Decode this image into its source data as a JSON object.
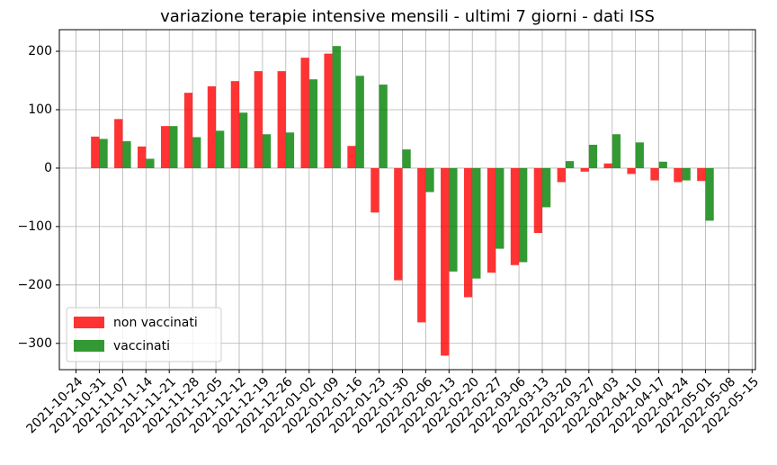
{
  "chart_data": {
    "type": "bar",
    "title": "variazione terapie intensive mensili - ultimi 7 giorni - dati ISS",
    "x": [
      "2021-10-31",
      "2021-11-07",
      "2021-11-14",
      "2021-11-21",
      "2021-11-28",
      "2021-12-05",
      "2021-12-12",
      "2021-12-19",
      "2021-12-26",
      "2022-01-02",
      "2022-01-09",
      "2022-01-16",
      "2022-01-23",
      "2022-01-30",
      "2022-02-06",
      "2022-02-13",
      "2022-02-20",
      "2022-02-27",
      "2022-03-06",
      "2022-03-13",
      "2022-03-20",
      "2022-03-27",
      "2022-04-03",
      "2022-04-10",
      "2022-04-17",
      "2022-04-24",
      "2022-05-01"
    ],
    "series": [
      {
        "name": "non vaccinati",
        "color": "#ff0000",
        "values": [
          54,
          84,
          37,
          72,
          129,
          140,
          149,
          166,
          166,
          189,
          196,
          38,
          -76,
          -192,
          -264,
          -321,
          -221,
          -179,
          -166,
          -111,
          -24,
          -6,
          8,
          -10,
          -21,
          -24,
          -22
        ]
      },
      {
        "name": "vaccinati",
        "color": "#008000",
        "values": [
          50,
          46,
          16,
          72,
          53,
          64,
          95,
          58,
          61,
          152,
          209,
          158,
          143,
          32,
          -41,
          -177,
          -189,
          -138,
          -161,
          -67,
          12,
          40,
          58,
          44,
          11,
          -21,
          -90
        ]
      }
    ],
    "xlim": [
      "2021-10-19",
      "2022-05-16"
    ],
    "xticks": [
      "2021-10-24",
      "2021-10-31",
      "2021-11-07",
      "2021-11-14",
      "2021-11-21",
      "2021-11-28",
      "2021-12-05",
      "2021-12-12",
      "2021-12-19",
      "2021-12-26",
      "2022-01-02",
      "2022-01-09",
      "2022-01-16",
      "2022-01-23",
      "2022-01-30",
      "2022-02-06",
      "2022-02-13",
      "2022-02-20",
      "2022-02-27",
      "2022-03-06",
      "2022-03-13",
      "2022-03-20",
      "2022-03-27",
      "2022-04-03",
      "2022-04-10",
      "2022-04-17",
      "2022-04-24",
      "2022-05-01",
      "2022-05-08",
      "2022-05-15"
    ],
    "ylim": [
      -345,
      237
    ],
    "yticks": [
      {
        "value": -300,
        "label": "−300"
      },
      {
        "value": -200,
        "label": "−200"
      },
      {
        "value": -100,
        "label": "−100"
      },
      0,
      100,
      200
    ],
    "grid": true,
    "legend": "lower left"
  }
}
